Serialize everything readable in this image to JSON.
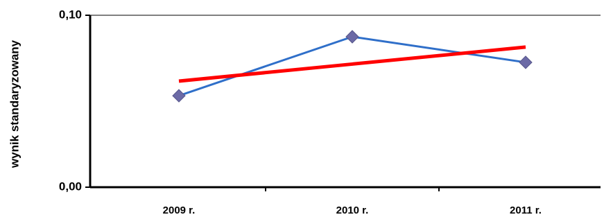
{
  "chart_data": {
    "type": "line",
    "y_label": "wynik standaryzowany",
    "categories": [
      "2009 r.",
      "2010 r.",
      "2011 r."
    ],
    "series": [
      {
        "color": "#2f6fc9",
        "values": [
          0.0532,
          0.0875,
          0.0726
        ],
        "marker": "diamond",
        "marker_color": "#6c6aa6"
      },
      {
        "color": "#ff0000",
        "values": [
          0.0617,
          0.0716,
          0.0815
        ],
        "marker": "none"
      }
    ],
    "ylim": [
      0,
      0.1
    ],
    "yticks": [
      {
        "value": 0,
        "label": "0,00"
      },
      {
        "value": 0.1,
        "label": "0,10"
      }
    ]
  }
}
